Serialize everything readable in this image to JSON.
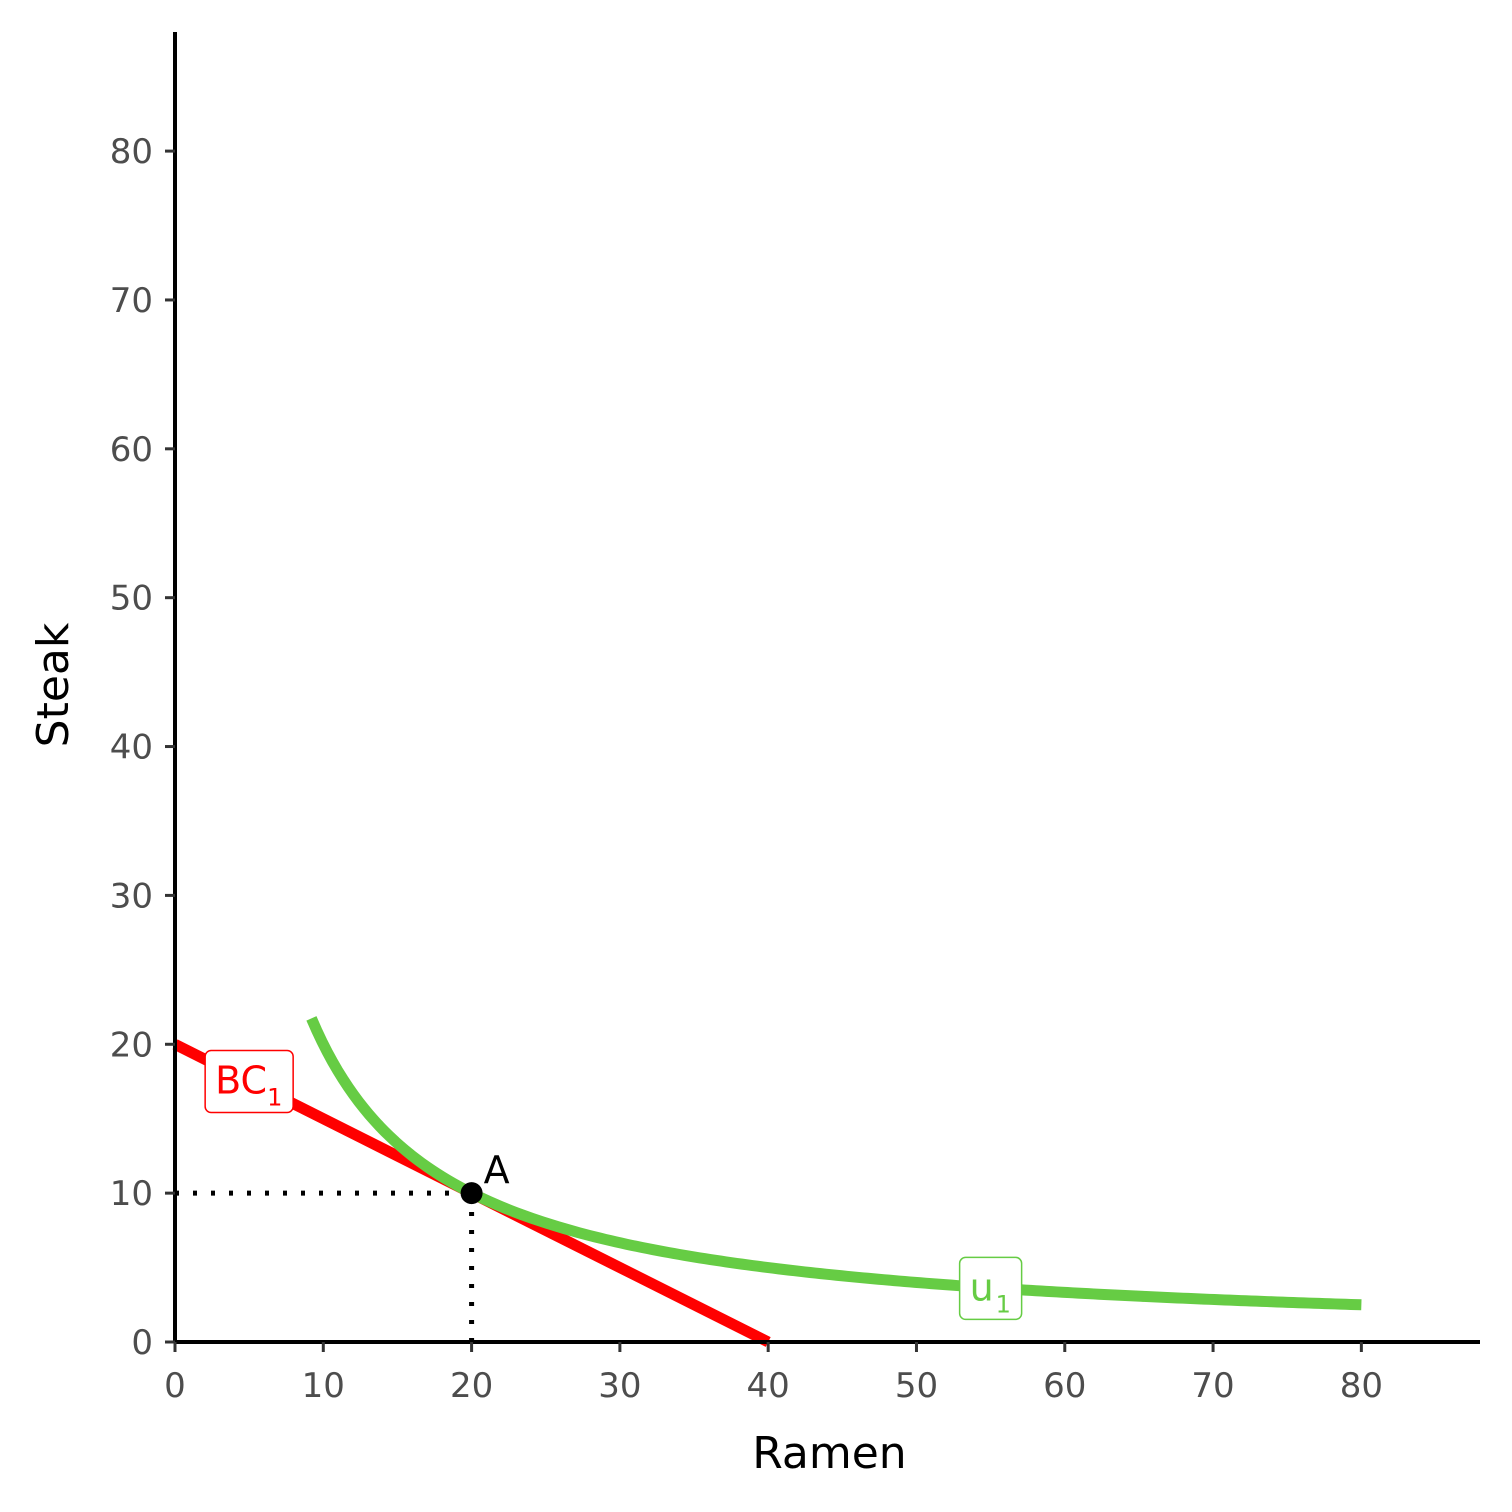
{
  "chart_data": {
    "type": "line",
    "xlabel": "Ramen",
    "ylabel": "Steak",
    "xlim": [
      0,
      88
    ],
    "ylim": [
      0,
      88
    ],
    "x_ticks": [
      0,
      10,
      20,
      30,
      40,
      50,
      60,
      70,
      80
    ],
    "y_ticks": [
      0,
      10,
      20,
      30,
      40,
      50,
      60,
      70,
      80
    ],
    "x_tick_labels": [
      "0",
      "10",
      "20",
      "30",
      "40",
      "50",
      "60",
      "70",
      "80"
    ],
    "y_tick_labels": [
      "0",
      "10",
      "20",
      "30",
      "40",
      "50",
      "60",
      "70",
      "80"
    ],
    "grid": false,
    "series": [
      {
        "name": "BC",
        "subscript": "1",
        "color": "#ff0000",
        "kind": "budget_line",
        "x_range": [
          0,
          40
        ],
        "intercept": 20,
        "slope": -0.5,
        "label_at": {
          "x": 5,
          "y": 17.5
        }
      },
      {
        "name": "u",
        "subscript": "1",
        "color": "#66cc44",
        "kind": "indifference_curve",
        "formula": "y = 200 / x",
        "x_range": [
          9.2,
          80
        ],
        "label_at": {
          "x": 55,
          "y": 3.6
        }
      }
    ],
    "points": [
      {
        "label": "A",
        "x": 20,
        "y": 10,
        "color": "#000000"
      }
    ],
    "guides": [
      {
        "from": [
          0,
          10
        ],
        "to": [
          20,
          10
        ],
        "style": "dotted"
      },
      {
        "from": [
          20,
          0
        ],
        "to": [
          20,
          10
        ],
        "style": "dotted"
      }
    ]
  }
}
